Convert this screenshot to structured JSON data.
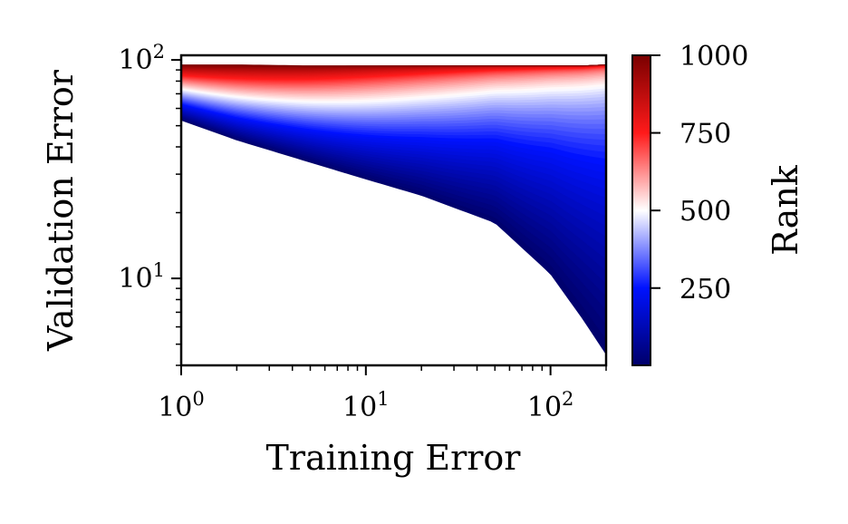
{
  "chart_data": {
    "type": "area",
    "xlabel": "Training Error",
    "ylabel": "Validation Error",
    "x_scale": "log",
    "y_scale": "log",
    "xlim": [
      1,
      200
    ],
    "ylim": [
      4,
      105
    ],
    "x_ticks": [
      {
        "value": 1,
        "base": "10",
        "exp": "0"
      },
      {
        "value": 10,
        "base": "10",
        "exp": "1"
      },
      {
        "value": 100,
        "base": "10",
        "exp": "2"
      }
    ],
    "y_ticks": [
      {
        "value": 10,
        "base": "10",
        "exp": "1"
      },
      {
        "value": 100,
        "base": "10",
        "exp": "2"
      }
    ],
    "grid": false,
    "series_description": "Band of validation-vs-training-error curves colored by rank",
    "envelope": {
      "upper": {
        "x": [
          1,
          2,
          5,
          10,
          20,
          50,
          100,
          150,
          200
        ],
        "y": [
          95,
          95,
          94,
          94,
          94,
          94,
          94,
          94,
          95
        ]
      },
      "lower": {
        "x": [
          1,
          2,
          5,
          10,
          20,
          50,
          100,
          150,
          200
        ],
        "y": [
          53,
          43,
          34,
          28.5,
          24,
          18,
          10.5,
          6.5,
          4.5
        ]
      },
      "start_point": {
        "x": 1,
        "y": 53
      }
    },
    "colorbar": {
      "label": "Rank",
      "min": 1,
      "max": 1000,
      "ticks": [
        "250",
        "500",
        "750",
        "1000"
      ],
      "tick_values": [
        250,
        500,
        750,
        1000
      ],
      "colormap": [
        "#00006a",
        "#0012ff",
        "#ffffff",
        "#ff1a1a",
        "#7a0000"
      ]
    }
  }
}
